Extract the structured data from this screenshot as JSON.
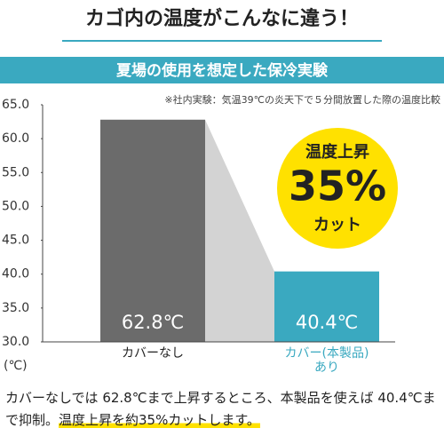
{
  "title": "カゴ内の温度がこんなに違う！",
  "banner": "夏場の使用を想定した保冷実験",
  "note": "※社内実験：気温39℃の炎天下で５分間放置した際の温度比較",
  "footer": [
    "カバーなしでは 62.8℃まで上昇するところ、本製品を使えば 40.4℃まで抑制。",
    "温度上昇を約35%カットします。"
  ],
  "chart_data": {
    "type": "bar",
    "categories": [
      "カバーなし",
      "カバー(本製品)\nあり"
    ],
    "values": [
      62.8,
      40.4
    ],
    "value_labels": [
      "62.8℃",
      "40.4℃"
    ],
    "colors": [
      "#6b6b6b",
      "#3aa9c0"
    ],
    "category_colors": [
      "#222222",
      "#3aa9c0"
    ],
    "y_axis_label": "(℃)",
    "ylim": [
      30,
      65
    ],
    "yticks": [
      {
        "value": 30,
        "label": "30.0"
      },
      {
        "value": 35,
        "label": "35.0"
      },
      {
        "value": 40,
        "label": "40.0"
      },
      {
        "value": 45,
        "label": "45.0"
      },
      {
        "value": 50,
        "label": "50.0"
      },
      {
        "value": 55,
        "label": "55.0"
      },
      {
        "value": 60,
        "label": "60.0"
      },
      {
        "value": 65,
        "label": "65.0"
      }
    ],
    "grid": false,
    "annotation": [
      "温度上昇",
      "35%",
      "カット"
    ]
  }
}
